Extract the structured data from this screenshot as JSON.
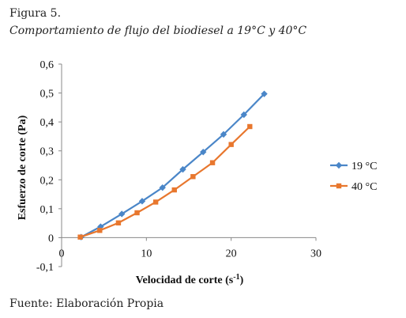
{
  "figure": {
    "label": "Figura 5.",
    "caption": "Comportamiento de flujo del biodiesel a 19°C y 40°C",
    "source": "Fuente: Elaboración Propia"
  },
  "chart_data": {
    "type": "line",
    "xlabel": "Velocidad de corte (s",
    "xlabel_sup": "-1",
    "xlabel_end": ")",
    "ylabel": "Esfuerzo de corte (Pa)",
    "xlim": [
      0,
      30
    ],
    "ylim": [
      -0.1,
      0.6
    ],
    "x_ticks": [
      "0",
      "10",
      "20",
      "30"
    ],
    "y_ticks": [
      "-0,1",
      "0",
      "0,1",
      "0,2",
      "0,3",
      "0,4",
      "0,5",
      "0,6"
    ],
    "grid": false,
    "legend_position": "right",
    "series": [
      {
        "name": "19 °C",
        "color": "#4a86c8",
        "marker": "diamond",
        "x": [
          2.3,
          4.6,
          7.1,
          9.5,
          11.9,
          14.3,
          16.7,
          19.1,
          21.5,
          23.9
        ],
        "y": [
          0.002,
          0.038,
          0.082,
          0.126,
          0.173,
          0.236,
          0.296,
          0.357,
          0.425,
          0.497
        ]
      },
      {
        "name": "40 °C",
        "color": "#e8772e",
        "marker": "square",
        "x": [
          2.2,
          4.5,
          6.7,
          8.9,
          11.1,
          13.3,
          15.5,
          17.8,
          20.0,
          22.2
        ],
        "y": [
          0.002,
          0.025,
          0.051,
          0.086,
          0.123,
          0.165,
          0.211,
          0.259,
          0.322,
          0.384
        ]
      }
    ]
  }
}
